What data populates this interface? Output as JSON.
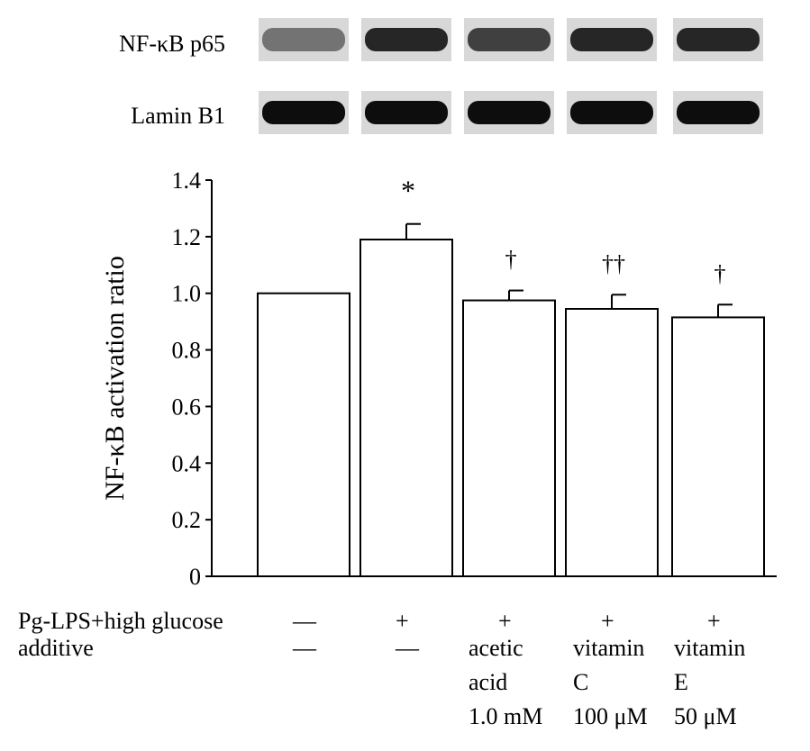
{
  "blot": {
    "rows": [
      {
        "label": "NF-κB p65",
        "intensity": [
          0.55,
          0.85,
          0.75,
          0.85,
          0.85
        ]
      },
      {
        "label": "Lamin B1",
        "intensity": [
          0.95,
          0.95,
          0.95,
          0.95,
          0.95
        ]
      }
    ]
  },
  "chart_data": {
    "type": "bar",
    "ylabel": "NF-κB activation ratio",
    "ylim": [
      0,
      1.4
    ],
    "yticks": [
      0,
      0.2,
      0.4,
      0.6,
      0.8,
      1.0,
      1.2,
      1.4
    ],
    "ytick_labels": [
      "0",
      "0.2",
      "0.4",
      "0.6",
      "0.8",
      "1.0",
      "1.2",
      "1.4"
    ],
    "values": [
      1.0,
      1.19,
      0.975,
      0.945,
      0.915
    ],
    "errors": [
      0.0,
      0.055,
      0.035,
      0.05,
      0.045
    ],
    "significance": [
      "",
      "*",
      "†",
      "††",
      "†"
    ],
    "conditions": {
      "row1_label": "Pg-LPS+high glucose",
      "row1_values": [
        "—",
        "+",
        "+",
        "+",
        "+"
      ],
      "row2_label": "additive",
      "row2_values": [
        [
          "—"
        ],
        [
          "—"
        ],
        [
          "acetic",
          "acid",
          "1.0 mM"
        ],
        [
          "vitamin",
          "C",
          "100 μM"
        ],
        [
          "vitamin",
          "E",
          "50 μM"
        ]
      ]
    }
  }
}
